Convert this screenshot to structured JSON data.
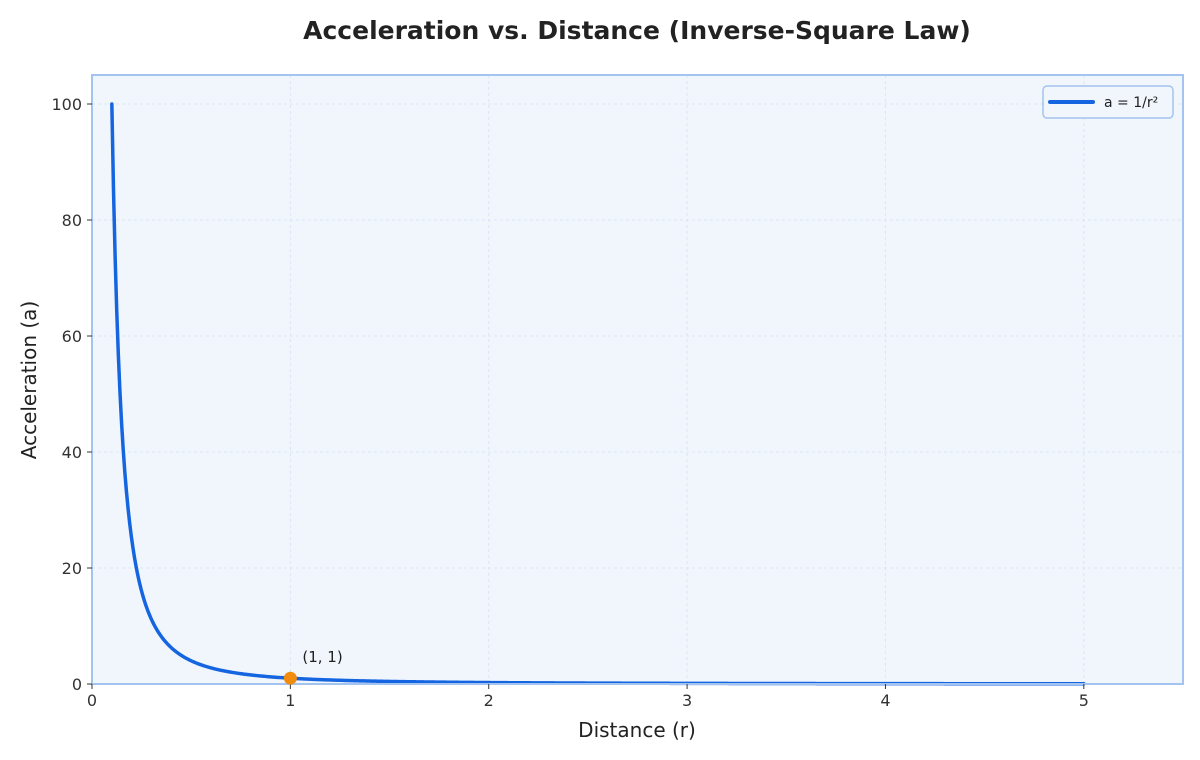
{
  "chart_data": {
    "type": "line",
    "title": "Acceleration vs. Distance (Inverse-Square Law)",
    "xlabel": "Distance (r)",
    "ylabel": "Acceleration (a)",
    "xlim": [
      0,
      5.5
    ],
    "ylim": [
      0,
      105
    ],
    "x_ticks": [
      0,
      1,
      2,
      3,
      4,
      5
    ],
    "y_ticks": [
      0,
      20,
      40,
      60,
      80,
      100
    ],
    "grid": true,
    "legend_position": "top-right",
    "series": [
      {
        "name": "a = 1/r²",
        "function": "1/r^2",
        "x_range": [
          0.1,
          5.0
        ],
        "color": "#1565e0"
      }
    ],
    "annotations": [
      {
        "x": 1,
        "y": 1,
        "text": "(1, 1)",
        "marker_color": "#f28c0f"
      }
    ],
    "colors": {
      "plot_background": "#f1f6fd",
      "plot_border": "#a3c4f0",
      "grid": "#dbe5f2"
    }
  }
}
